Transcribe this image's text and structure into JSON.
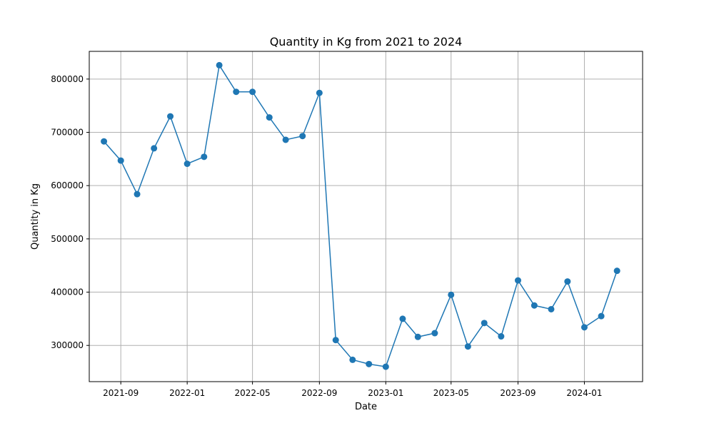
{
  "chart_data": {
    "type": "line",
    "title": "Quantity in Kg from 2021 to 2024",
    "xlabel": "Date",
    "ylabel": "Quantity in Kg",
    "xlim": [
      "2021-07-05",
      "2024-04-17"
    ],
    "ylim": [
      232000,
      852000
    ],
    "grid": true,
    "line_color": "#1f77b4",
    "marker": "circle",
    "x_ticks": [
      "2021-09-01",
      "2022-01-01",
      "2022-05-01",
      "2022-09-01",
      "2023-01-01",
      "2023-05-01",
      "2023-09-01",
      "2024-01-01"
    ],
    "x_tick_labels": [
      "2021-09",
      "2022-01",
      "2022-05",
      "2022-09",
      "2023-01",
      "2023-05",
      "2023-09",
      "2024-01"
    ],
    "y_ticks": [
      300000,
      400000,
      500000,
      600000,
      700000,
      800000
    ],
    "y_tick_labels": [
      "300000",
      "400000",
      "500000",
      "600000",
      "700000",
      "800000"
    ],
    "series": [
      {
        "x": [
          "2021-08-01",
          "2021-09-01",
          "2021-10-01",
          "2021-11-01",
          "2021-12-01",
          "2022-01-01",
          "2022-02-01",
          "2022-03-01",
          "2022-04-01",
          "2022-05-01",
          "2022-06-01",
          "2022-07-01",
          "2022-08-01",
          "2022-09-01",
          "2022-10-01",
          "2022-11-01",
          "2022-12-01",
          "2023-01-01",
          "2023-02-01",
          "2023-03-01",
          "2023-04-01",
          "2023-05-01",
          "2023-06-01",
          "2023-07-01",
          "2023-08-01",
          "2023-09-01",
          "2023-10-01",
          "2023-11-01",
          "2023-12-01",
          "2024-01-01",
          "2024-02-01",
          "2024-03-01"
        ],
        "values": [
          683000,
          647000,
          584000,
          670000,
          730000,
          641000,
          654000,
          826000,
          776000,
          776000,
          728000,
          686000,
          693000,
          774000,
          310000,
          273000,
          265000,
          260000,
          350000,
          316000,
          323000,
          395000,
          298000,
          342000,
          317000,
          422000,
          375000,
          368000,
          420000,
          334000,
          355000,
          440000
        ]
      }
    ]
  }
}
